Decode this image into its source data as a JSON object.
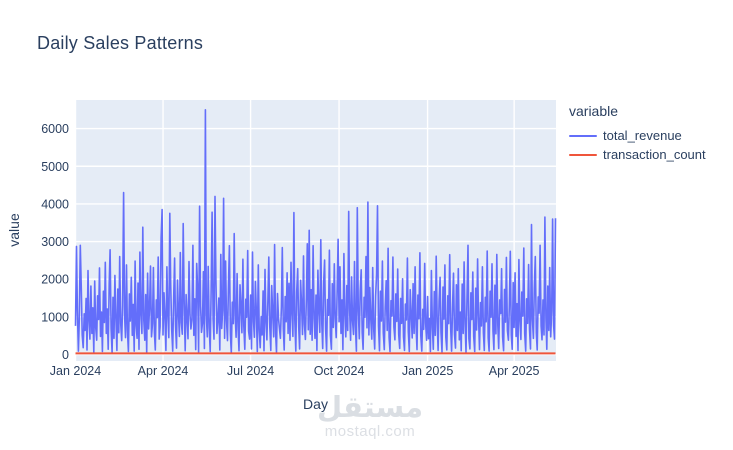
{
  "page": {
    "title": "Daily Sales Patterns"
  },
  "watermark": {
    "logo_text": "مستقل",
    "url_text": "mostaql.com"
  },
  "chart_data": {
    "type": "line",
    "title": "Daily Sales Patterns",
    "xlabel": "Day",
    "ylabel": "value",
    "legend_title": "variable",
    "legend_position": "right-top",
    "grid": true,
    "colors": {
      "plot_background": "#e5ecf6",
      "gridline": "#ffffff",
      "text": "#2a3f5f"
    },
    "x_start_date": "2024-01-01",
    "x_tick_labels": [
      "Jan 2024",
      "Apr 2024",
      "Jul 2024",
      "Oct 2024",
      "Jan 2025",
      "Apr 2025"
    ],
    "x_tick_day_offsets": [
      0,
      91,
      182,
      274,
      366,
      456
    ],
    "y_ticks": [
      0,
      1000,
      2000,
      3000,
      4000,
      5000,
      6000
    ],
    "ylim": [
      -200,
      6750
    ],
    "series": [
      {
        "name": "total_revenue",
        "color": "#636efa",
        "values": [
          760,
          2870,
          1150,
          90,
          940,
          2900,
          1750,
          520,
          180,
          1080,
          640,
          1490,
          120,
          2230,
          880,
          410,
          1820,
          560,
          1240,
          60,
          1950,
          720,
          380,
          1560,
          930,
          2300,
          480,
          1130,
          80,
          1680,
          850,
          2450,
          560,
          1210,
          140,
          1880,
          2780,
          690,
          40,
          1520,
          430,
          2100,
          960,
          110,
          1740,
          580,
          2600,
          830,
          370,
          1290,
          4300,
          1030,
          450,
          2380,
          660,
          80,
          1610,
          890,
          2050,
          510,
          1330,
          90,
          2480,
          770,
          430,
          1900,
          140,
          2720,
          1060,
          560,
          3380,
          910,
          380,
          1590,
          50,
          2160,
          680,
          1270,
          2350,
          470,
          820,
          2310,
          590,
          120,
          1450,
          980,
          2590,
          410,
          740,
          3100,
          3850,
          520,
          1640,
          980,
          110,
          2330,
          1100,
          450,
          3750,
          1870,
          660,
          90,
          1420,
          2560,
          790,
          170,
          1980,
          1130,
          480,
          2710,
          850,
          540,
          3480,
          1360,
          100,
          1590,
          940,
          420,
          2470,
          1060,
          680,
          920,
          2900,
          510,
          1480,
          130,
          2420,
          1700,
          60,
          3940,
          1280,
          590,
          840,
          2200,
          160,
          6500,
          1050,
          470,
          2340,
          720,
          80,
          1630,
          3780,
          950,
          410,
          4200,
          2030,
          560,
          950,
          1500,
          120,
          2660,
          690,
          1180,
          4150,
          430,
          2480,
          910,
          370,
          1760,
          2890,
          540,
          50,
          1390,
          820,
          3210,
          1020,
          460,
          2150,
          670,
          100,
          1850,
          1240,
          580,
          2530,
          760,
          140,
          1470,
          990,
          2760,
          620,
          410,
          1580,
          150,
          2720,
          880,
          460,
          1940,
          1170,
          80,
          2380,
          650,
          180,
          1010,
          520,
          1690,
          100,
          2260,
          840,
          390,
          1450,
          2590,
          730,
          110,
          1830,
          1080,
          470,
          2920,
          560,
          60,
          1620,
          950,
          700,
          430,
          1260,
          2840,
          690,
          120,
          1540,
          870,
          2170,
          560,
          1890,
          380,
          2450,
          1110,
          480,
          3770,
          920,
          90,
          1670,
          2280,
          740,
          150,
          1970,
          1300,
          530,
          2620,
          810,
          400,
          1520,
          2940,
          660,
          3300,
          540,
          1720,
          380,
          2890,
          960,
          430,
          1580,
          110,
          2240,
          1130,
          590,
          3050,
          820,
          160,
          1940,
          2510,
          680,
          90,
          1460,
          1040,
          2770,
          510,
          140,
          1880,
          720,
          2410,
          980,
          450,
          1620,
          3060,
          870,
          2330,
          560,
          1450,
          130,
          2680,
          1090,
          470,
          1830,
          640,
          3800,
          1210,
          380,
          2060,
          910,
          530,
          2470,
          760,
          90,
          3900,
          1160,
          420,
          1700,
          2250,
          580,
          140,
          1520,
          990,
          2600,
          710,
          4050,
          520,
          1780,
          940,
          410,
          2310,
          680,
          150,
          1550,
          2140,
          3950,
          760,
          100,
          1680,
          890,
          2480,
          570,
          130,
          1250,
          1960,
          640,
          2820,
          450,
          80,
          1430,
          1020,
          2590,
          730,
          390,
          1610,
          880,
          2270,
          540,
          160,
          1490,
          830,
          2010,
          470,
          110,
          1340,
          920,
          2560,
          610,
          80,
          1720,
          1060,
          440,
          1880,
          560,
          2330,
          790,
          130,
          1580,
          950,
          2700,
          500,
          90,
          1200,
          670,
          2420,
          840,
          380,
          1540,
          420,
          960,
          80,
          2230,
          730,
          140,
          1670,
          510,
          2610,
          880,
          110,
          1420,
          2050,
          590,
          70,
          1790,
          940,
          2380,
          460,
          120,
          1560,
          820,
          2650,
          680,
          90,
          1310,
          2160,
          540,
          170,
          1850,
          640,
          2280,
          390,
          1130,
          100,
          1870,
          560,
          2460,
          810,
          60,
          1490,
          2900,
          420,
          150,
          1640,
          930,
          2190,
          480,
          80,
          1760,
          650,
          2540,
          1010,
          130,
          1380,
          760,
          2330,
          570,
          110,
          1520,
          870,
          2750,
          440,
          90,
          1680,
          990,
          2410,
          620,
          130,
          1840,
          550,
          2660,
          780,
          160,
          1450,
          1090,
          2280,
          470,
          100,
          1730,
          860,
          2580,
          640,
          380,
          1260,
          2740,
          520,
          140,
          1910,
          720,
          2170,
          480,
          1350,
          110,
          2520,
          890,
          400,
          1660,
          1020,
          2830,
          560,
          90,
          1480,
          830,
          2390,
          670,
          150,
          3450,
          940,
          430,
          1770,
          2600,
          580,
          120,
          1530,
          1100,
          2900,
          760,
          390,
          1450,
          520,
          3650,
          980,
          140,
          1820,
          640,
          2310,
          470,
          1160,
          3600,
          780,
          410,
          3620
        ]
      },
      {
        "name": "transaction_count",
        "color": "#ef553b",
        "constant_value": 30
      }
    ]
  }
}
